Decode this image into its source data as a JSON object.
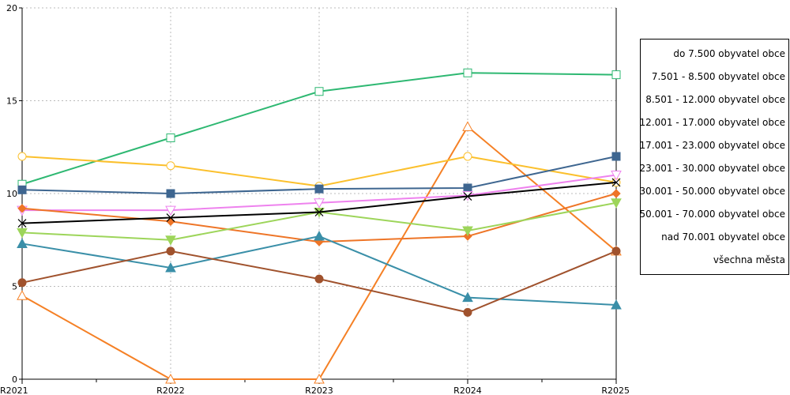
{
  "chart_data": {
    "type": "line",
    "title": "",
    "xlabel": "",
    "ylabel": "",
    "categories": [
      "R2021",
      "R2022",
      "R2023",
      "R2024",
      "R2025"
    ],
    "ylim": [
      0,
      20
    ],
    "yticks": [
      0,
      5,
      10,
      15,
      20
    ],
    "grid": true,
    "legend_position": "right",
    "series": [
      {
        "name": "do 7.500 obyvatel obce",
        "color": "#f58025",
        "marker": "triangle-open",
        "values": [
          4.5,
          0,
          0,
          13.6,
          6.9
        ]
      },
      {
        "name": "7.501 - 8.500 obyvatel obce",
        "color": "#2eb872",
        "marker": "square-open",
        "values": [
          10.5,
          13.0,
          15.5,
          16.5,
          16.4
        ]
      },
      {
        "name": "8.501 - 12.000 obyvatel obce",
        "color": "#fbc02d",
        "marker": "circle-open",
        "values": [
          12.0,
          11.5,
          10.4,
          12.0,
          10.6
        ]
      },
      {
        "name": "12.001 - 17.000 obyvatel obce",
        "color": "#3e6690",
        "marker": "square",
        "values": [
          10.2,
          10.0,
          10.25,
          10.3,
          12.0
        ]
      },
      {
        "name": "17.001 - 23.000 obyvatel obce",
        "color": "#ee82ee",
        "marker": "triangle-down-open",
        "values": [
          9.1,
          9.1,
          9.5,
          9.9,
          11.0
        ]
      },
      {
        "name": "23.001 - 30.000 obyvatel obce",
        "color": "#ee7527",
        "marker": "diamond",
        "values": [
          9.2,
          8.5,
          7.4,
          7.7,
          10.0
        ]
      },
      {
        "name": "30.001 - 50.000 obyvatel obce",
        "color": "#9dd55a",
        "marker": "triangle-down",
        "values": [
          7.9,
          7.5,
          9.0,
          8.0,
          9.5
        ]
      },
      {
        "name": "50.001 - 70.000 obyvatel obce",
        "color": "#3a8fa8",
        "marker": "triangle",
        "values": [
          7.3,
          6.0,
          7.7,
          4.4,
          4.0
        ]
      },
      {
        "name": "nad 70.001 obyvatel obce",
        "color": "#a0522d",
        "marker": "circle",
        "values": [
          5.2,
          6.9,
          5.4,
          3.6,
          6.9
        ]
      },
      {
        "name": "všechna města",
        "color": "#000000",
        "marker": "x",
        "values": [
          8.4,
          8.7,
          9.0,
          9.85,
          10.6
        ]
      }
    ]
  }
}
